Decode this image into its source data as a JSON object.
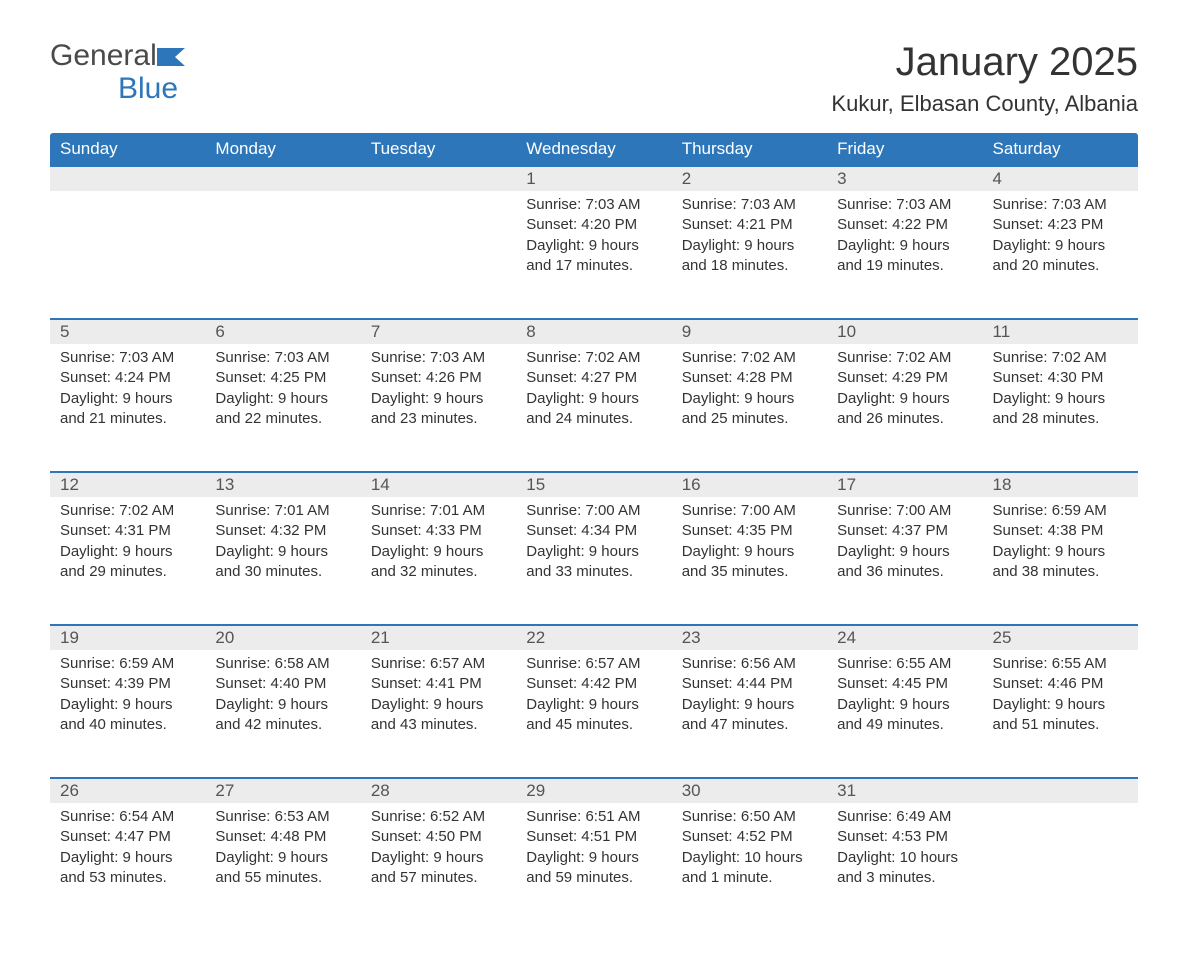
{
  "logo": {
    "word1": "General",
    "word2": "Blue"
  },
  "title": "January 2025",
  "location": "Kukur, Elbasan County, Albania",
  "colors": {
    "header_bg": "#2d76b9",
    "header_text": "#ffffff",
    "row_separator": "#2d76b9",
    "daynum_bg": "#ececec",
    "body_text": "#333333",
    "page_bg": "#ffffff"
  },
  "day_headers": [
    "Sunday",
    "Monday",
    "Tuesday",
    "Wednesday",
    "Thursday",
    "Friday",
    "Saturday"
  ],
  "weeks": [
    [
      null,
      null,
      null,
      {
        "n": "1",
        "sunrise": "Sunrise: 7:03 AM",
        "sunset": "Sunset: 4:20 PM",
        "daylight1": "Daylight: 9 hours",
        "daylight2": "and 17 minutes."
      },
      {
        "n": "2",
        "sunrise": "Sunrise: 7:03 AM",
        "sunset": "Sunset: 4:21 PM",
        "daylight1": "Daylight: 9 hours",
        "daylight2": "and 18 minutes."
      },
      {
        "n": "3",
        "sunrise": "Sunrise: 7:03 AM",
        "sunset": "Sunset: 4:22 PM",
        "daylight1": "Daylight: 9 hours",
        "daylight2": "and 19 minutes."
      },
      {
        "n": "4",
        "sunrise": "Sunrise: 7:03 AM",
        "sunset": "Sunset: 4:23 PM",
        "daylight1": "Daylight: 9 hours",
        "daylight2": "and 20 minutes."
      }
    ],
    [
      {
        "n": "5",
        "sunrise": "Sunrise: 7:03 AM",
        "sunset": "Sunset: 4:24 PM",
        "daylight1": "Daylight: 9 hours",
        "daylight2": "and 21 minutes."
      },
      {
        "n": "6",
        "sunrise": "Sunrise: 7:03 AM",
        "sunset": "Sunset: 4:25 PM",
        "daylight1": "Daylight: 9 hours",
        "daylight2": "and 22 minutes."
      },
      {
        "n": "7",
        "sunrise": "Sunrise: 7:03 AM",
        "sunset": "Sunset: 4:26 PM",
        "daylight1": "Daylight: 9 hours",
        "daylight2": "and 23 minutes."
      },
      {
        "n": "8",
        "sunrise": "Sunrise: 7:02 AM",
        "sunset": "Sunset: 4:27 PM",
        "daylight1": "Daylight: 9 hours",
        "daylight2": "and 24 minutes."
      },
      {
        "n": "9",
        "sunrise": "Sunrise: 7:02 AM",
        "sunset": "Sunset: 4:28 PM",
        "daylight1": "Daylight: 9 hours",
        "daylight2": "and 25 minutes."
      },
      {
        "n": "10",
        "sunrise": "Sunrise: 7:02 AM",
        "sunset": "Sunset: 4:29 PM",
        "daylight1": "Daylight: 9 hours",
        "daylight2": "and 26 minutes."
      },
      {
        "n": "11",
        "sunrise": "Sunrise: 7:02 AM",
        "sunset": "Sunset: 4:30 PM",
        "daylight1": "Daylight: 9 hours",
        "daylight2": "and 28 minutes."
      }
    ],
    [
      {
        "n": "12",
        "sunrise": "Sunrise: 7:02 AM",
        "sunset": "Sunset: 4:31 PM",
        "daylight1": "Daylight: 9 hours",
        "daylight2": "and 29 minutes."
      },
      {
        "n": "13",
        "sunrise": "Sunrise: 7:01 AM",
        "sunset": "Sunset: 4:32 PM",
        "daylight1": "Daylight: 9 hours",
        "daylight2": "and 30 minutes."
      },
      {
        "n": "14",
        "sunrise": "Sunrise: 7:01 AM",
        "sunset": "Sunset: 4:33 PM",
        "daylight1": "Daylight: 9 hours",
        "daylight2": "and 32 minutes."
      },
      {
        "n": "15",
        "sunrise": "Sunrise: 7:00 AM",
        "sunset": "Sunset: 4:34 PM",
        "daylight1": "Daylight: 9 hours",
        "daylight2": "and 33 minutes."
      },
      {
        "n": "16",
        "sunrise": "Sunrise: 7:00 AM",
        "sunset": "Sunset: 4:35 PM",
        "daylight1": "Daylight: 9 hours",
        "daylight2": "and 35 minutes."
      },
      {
        "n": "17",
        "sunrise": "Sunrise: 7:00 AM",
        "sunset": "Sunset: 4:37 PM",
        "daylight1": "Daylight: 9 hours",
        "daylight2": "and 36 minutes."
      },
      {
        "n": "18",
        "sunrise": "Sunrise: 6:59 AM",
        "sunset": "Sunset: 4:38 PM",
        "daylight1": "Daylight: 9 hours",
        "daylight2": "and 38 minutes."
      }
    ],
    [
      {
        "n": "19",
        "sunrise": "Sunrise: 6:59 AM",
        "sunset": "Sunset: 4:39 PM",
        "daylight1": "Daylight: 9 hours",
        "daylight2": "and 40 minutes."
      },
      {
        "n": "20",
        "sunrise": "Sunrise: 6:58 AM",
        "sunset": "Sunset: 4:40 PM",
        "daylight1": "Daylight: 9 hours",
        "daylight2": "and 42 minutes."
      },
      {
        "n": "21",
        "sunrise": "Sunrise: 6:57 AM",
        "sunset": "Sunset: 4:41 PM",
        "daylight1": "Daylight: 9 hours",
        "daylight2": "and 43 minutes."
      },
      {
        "n": "22",
        "sunrise": "Sunrise: 6:57 AM",
        "sunset": "Sunset: 4:42 PM",
        "daylight1": "Daylight: 9 hours",
        "daylight2": "and 45 minutes."
      },
      {
        "n": "23",
        "sunrise": "Sunrise: 6:56 AM",
        "sunset": "Sunset: 4:44 PM",
        "daylight1": "Daylight: 9 hours",
        "daylight2": "and 47 minutes."
      },
      {
        "n": "24",
        "sunrise": "Sunrise: 6:55 AM",
        "sunset": "Sunset: 4:45 PM",
        "daylight1": "Daylight: 9 hours",
        "daylight2": "and 49 minutes."
      },
      {
        "n": "25",
        "sunrise": "Sunrise: 6:55 AM",
        "sunset": "Sunset: 4:46 PM",
        "daylight1": "Daylight: 9 hours",
        "daylight2": "and 51 minutes."
      }
    ],
    [
      {
        "n": "26",
        "sunrise": "Sunrise: 6:54 AM",
        "sunset": "Sunset: 4:47 PM",
        "daylight1": "Daylight: 9 hours",
        "daylight2": "and 53 minutes."
      },
      {
        "n": "27",
        "sunrise": "Sunrise: 6:53 AM",
        "sunset": "Sunset: 4:48 PM",
        "daylight1": "Daylight: 9 hours",
        "daylight2": "and 55 minutes."
      },
      {
        "n": "28",
        "sunrise": "Sunrise: 6:52 AM",
        "sunset": "Sunset: 4:50 PM",
        "daylight1": "Daylight: 9 hours",
        "daylight2": "and 57 minutes."
      },
      {
        "n": "29",
        "sunrise": "Sunrise: 6:51 AM",
        "sunset": "Sunset: 4:51 PM",
        "daylight1": "Daylight: 9 hours",
        "daylight2": "and 59 minutes."
      },
      {
        "n": "30",
        "sunrise": "Sunrise: 6:50 AM",
        "sunset": "Sunset: 4:52 PM",
        "daylight1": "Daylight: 10 hours",
        "daylight2": "and 1 minute."
      },
      {
        "n": "31",
        "sunrise": "Sunrise: 6:49 AM",
        "sunset": "Sunset: 4:53 PM",
        "daylight1": "Daylight: 10 hours",
        "daylight2": "and 3 minutes."
      },
      null
    ]
  ]
}
